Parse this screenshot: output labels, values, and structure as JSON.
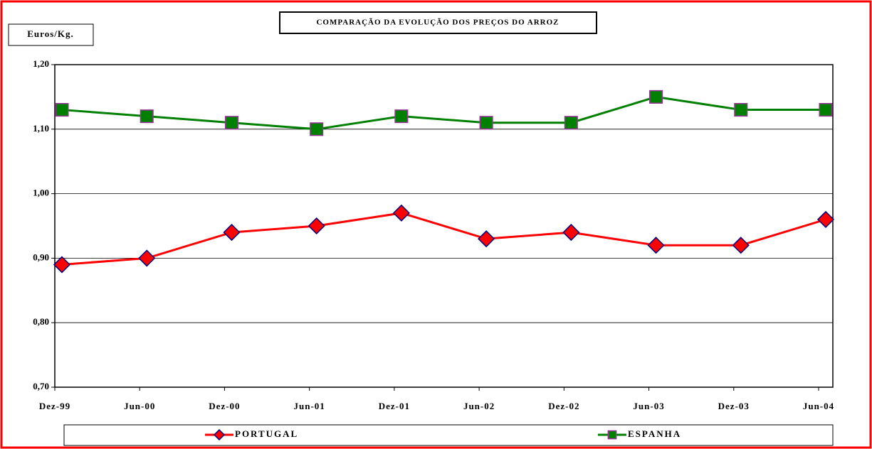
{
  "chart_data": {
    "type": "line",
    "title": "COMPARAÇÃO DA EVOLUÇÃO DOS PREÇOS DO ARROZ",
    "y_label": "Euros/Kg.",
    "categories": [
      "Dez-99",
      "Jun-00",
      "Dez-00",
      "Jun-01",
      "Dez-01",
      "Jun-02",
      "Dez-02",
      "Jun-03",
      "Dez-03",
      "Jun-04"
    ],
    "series": [
      {
        "name": "PORTUGAL",
        "color": "#ff0000",
        "marker": "diamond",
        "marker_fill": "#ff0000",
        "marker_stroke": "#000080",
        "values": [
          0.89,
          0.9,
          0.94,
          0.95,
          0.97,
          0.93,
          0.94,
          0.92,
          0.92,
          0.96
        ]
      },
      {
        "name": "ESPANHA",
        "color": "#008000",
        "marker": "square",
        "marker_fill": "#008000",
        "marker_stroke": "#993399",
        "values": [
          1.13,
          1.12,
          1.11,
          1.1,
          1.12,
          1.11,
          1.11,
          1.15,
          1.13,
          1.13
        ]
      }
    ],
    "ylim": [
      0.7,
      1.2
    ],
    "yticks": [
      {
        "value": 0.7,
        "label": "0,70"
      },
      {
        "value": 0.8,
        "label": "0,80"
      },
      {
        "value": 0.9,
        "label": "0,90"
      },
      {
        "value": 1.0,
        "label": "1,00"
      },
      {
        "value": 1.1,
        "label": "1,10"
      },
      {
        "value": 1.2,
        "label": "1,20"
      }
    ],
    "grid": true,
    "legend": "bottom"
  }
}
